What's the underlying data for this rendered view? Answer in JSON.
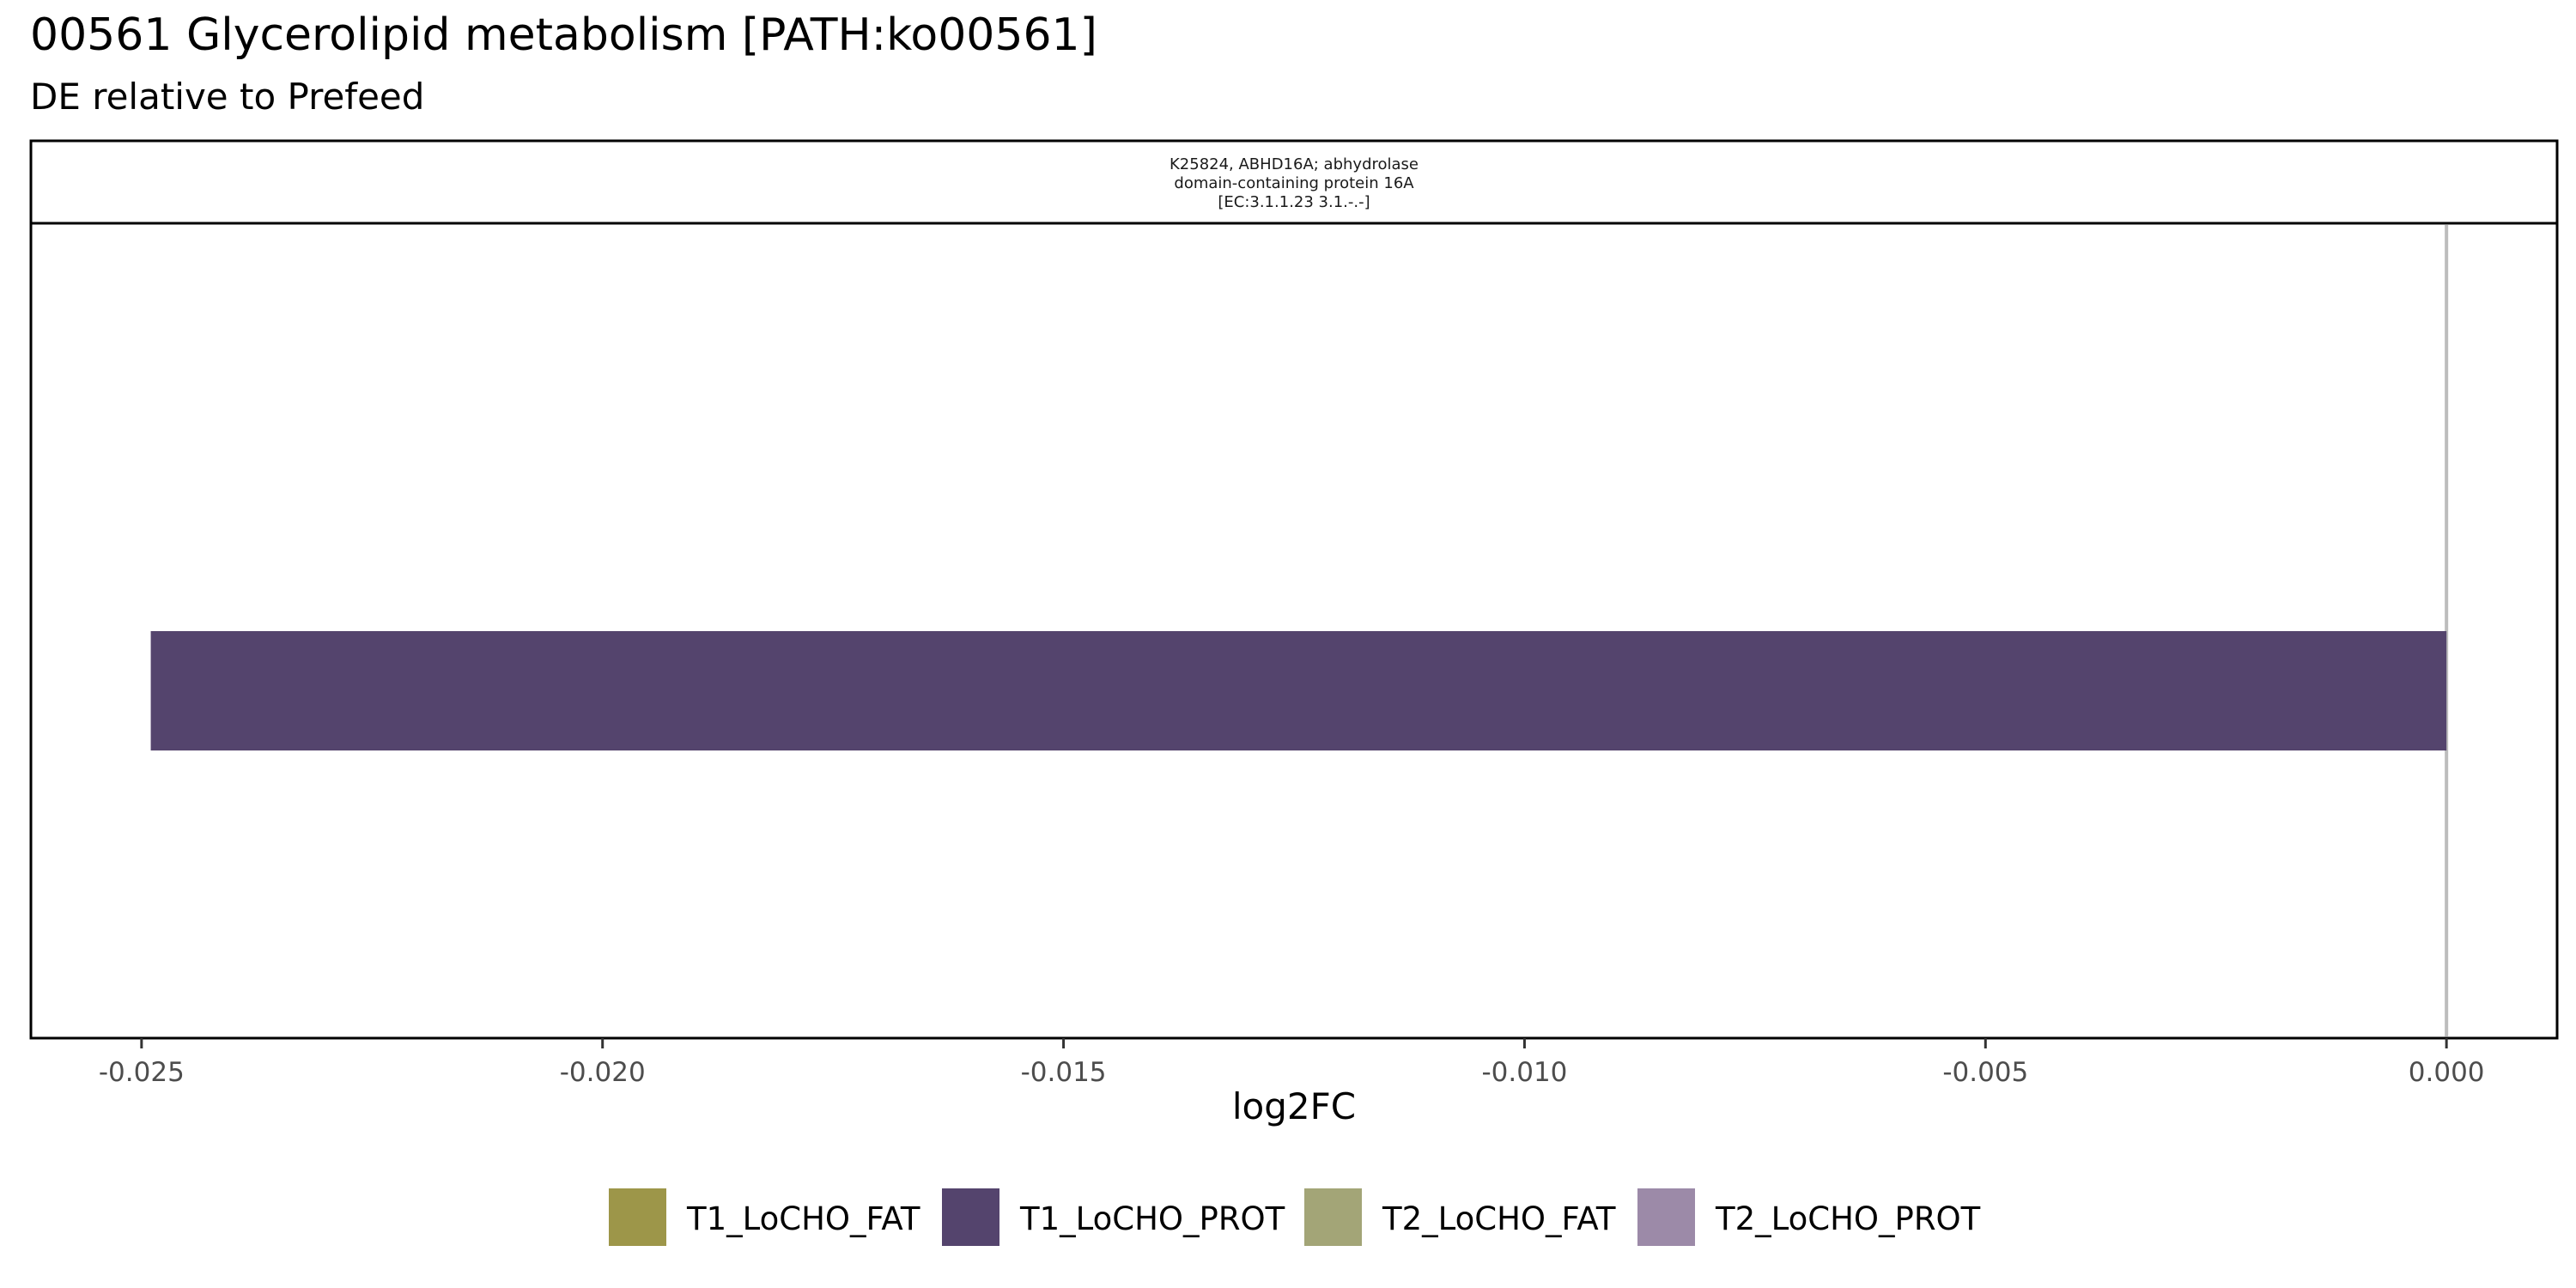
{
  "chart_data": {
    "type": "bar",
    "orientation": "horizontal",
    "title": "00561 Glycerolipid metabolism [PATH:ko00561]",
    "subtitle": "DE relative to Prefeed",
    "facet": {
      "label_lines": [
        "K25824, ABHD16A; abhydrolase",
        "domain-containing protein 16A",
        "[EC:3.1.1.23 3.1.-.-]"
      ]
    },
    "xlabel": "log2FC",
    "xlim": [
      -0.0262,
      0.0012
    ],
    "x_ticks": [
      -0.025,
      -0.02,
      -0.015,
      -0.01,
      -0.005,
      0.0
    ],
    "x_tick_labels": [
      "-0.025",
      "-0.020",
      "-0.015",
      "-0.010",
      "-0.005",
      "0.000"
    ],
    "reference_line_x": 0,
    "series": [
      {
        "name": "T1_LoCHO_PROT",
        "color": "#54446d",
        "value": -0.0249
      }
    ],
    "legend": {
      "position": "bottom",
      "entries": [
        {
          "name": "T1_LoCHO_FAT",
          "color": "#9d9649"
        },
        {
          "name": "T1_LoCHO_PROT",
          "color": "#54446d"
        },
        {
          "name": "T2_LoCHO_FAT",
          "color": "#a3a577"
        },
        {
          "name": "T2_LoCHO_PROT",
          "color": "#9c8aa8"
        }
      ]
    },
    "colors": {
      "panel_border": "#000000",
      "zero_line": "#bdbdbd",
      "tick_text": "#4d4d4d"
    }
  }
}
